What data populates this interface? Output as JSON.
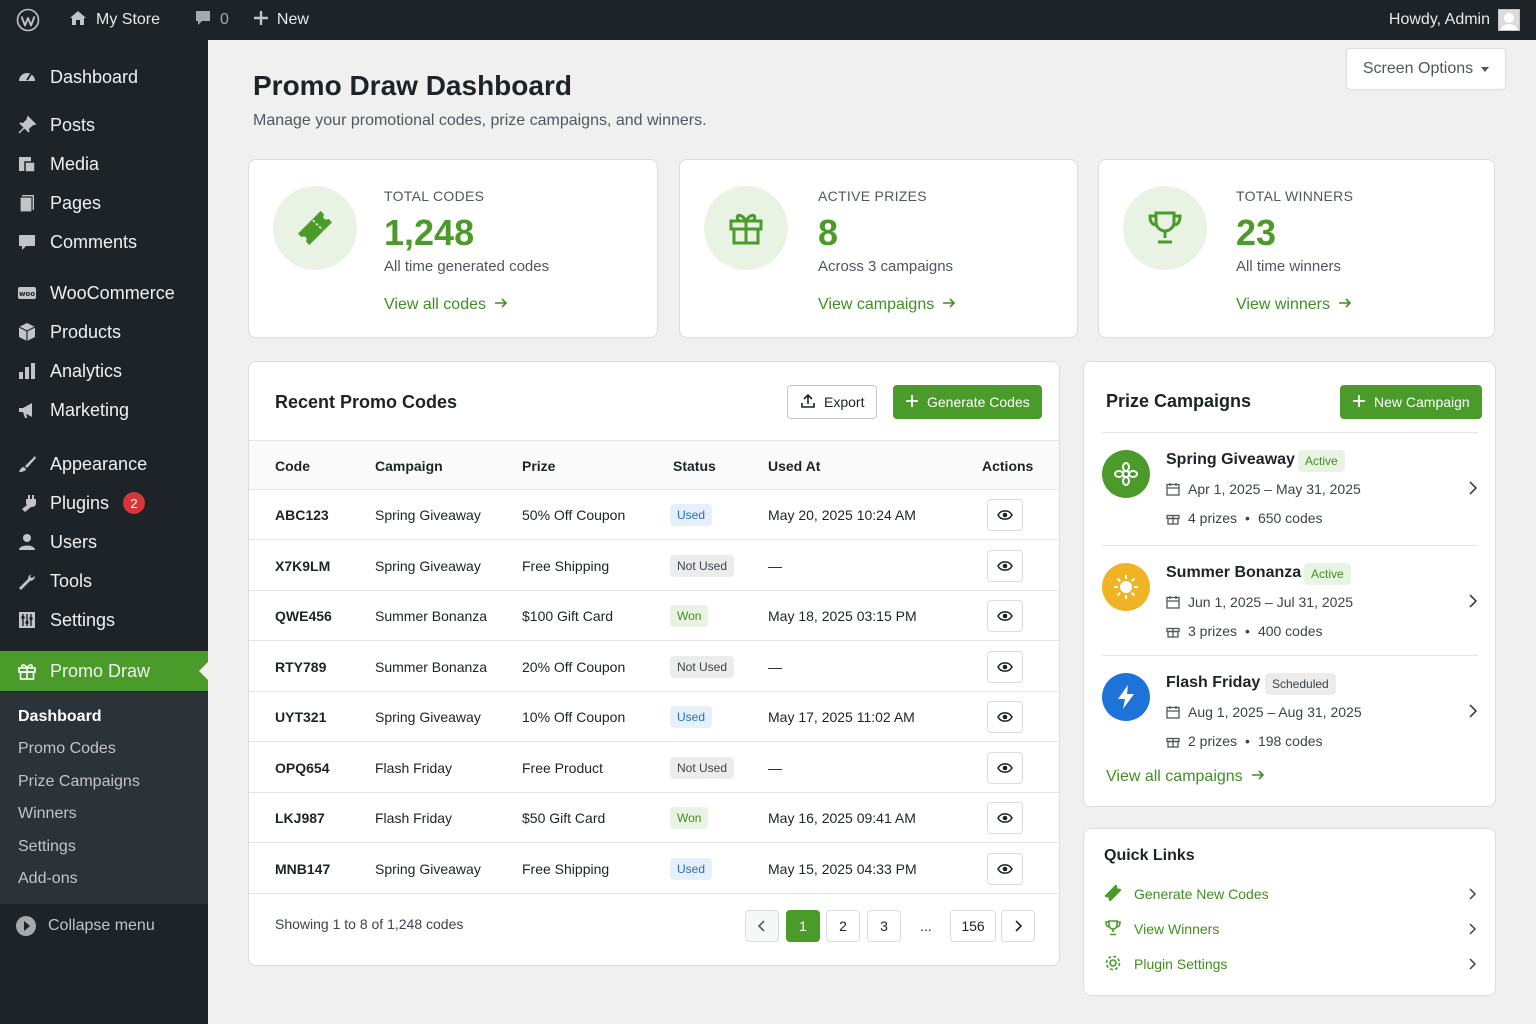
{
  "adminbar": {
    "site_name": "My Store",
    "comments_count": "0",
    "new_label": "New",
    "howdy": "Howdy, Admin"
  },
  "sidebar": {
    "items": [
      {
        "label": "Dashboard",
        "icon": "dashboard-icon"
      },
      {
        "label": "Posts",
        "icon": "pin-icon"
      },
      {
        "label": "Media",
        "icon": "media-icon"
      },
      {
        "label": "Pages",
        "icon": "pages-icon"
      },
      {
        "label": "Comments",
        "icon": "comment-icon"
      },
      {
        "label": "WooCommerce",
        "icon": "woo-icon"
      },
      {
        "label": "Products",
        "icon": "box-icon"
      },
      {
        "label": "Analytics",
        "icon": "bar-chart-icon"
      },
      {
        "label": "Marketing",
        "icon": "megaphone-icon"
      },
      {
        "label": "Appearance",
        "icon": "brush-icon"
      },
      {
        "label": "Plugins",
        "icon": "plug-icon",
        "badge": "2"
      },
      {
        "label": "Users",
        "icon": "user-icon"
      },
      {
        "label": "Tools",
        "icon": "wrench-icon"
      },
      {
        "label": "Settings",
        "icon": "sliders-icon"
      },
      {
        "label": "Promo Draw",
        "icon": "gift-icon",
        "active": true
      }
    ],
    "submenu": [
      "Dashboard",
      "Promo Codes",
      "Prize Campaigns",
      "Winners",
      "Settings",
      "Add-ons"
    ],
    "collapse_label": "Collapse menu"
  },
  "header": {
    "screen_options": "Screen Options",
    "title": "Promo Draw Dashboard",
    "subtitle": "Manage your promotional codes, prize campaigns, and winners."
  },
  "stats": [
    {
      "label": "TOTAL CODES",
      "value": "1,248",
      "desc": "All time generated codes",
      "link": "View all codes",
      "icon": "ticket-icon"
    },
    {
      "label": "ACTIVE PRIZES",
      "value": "8",
      "desc": "Across 3 campaigns",
      "link": "View campaigns",
      "icon": "gift-icon"
    },
    {
      "label": "TOTAL WINNERS",
      "value": "23",
      "desc": "All time winners",
      "link": "View winners",
      "icon": "trophy-icon"
    }
  ],
  "codes_table": {
    "title": "Recent Promo Codes",
    "export_label": "Export",
    "generate_label": "Generate Codes",
    "columns": [
      "Code",
      "Campaign",
      "Prize",
      "Status",
      "Used At",
      "Actions"
    ],
    "rows": [
      {
        "code": "ABC123",
        "campaign": "Spring Giveaway",
        "prize": "50% Off Coupon",
        "status": "Used",
        "status_type": "used",
        "used_at": "May 20, 2025 10:24 AM"
      },
      {
        "code": "X7K9LM",
        "campaign": "Spring Giveaway",
        "prize": "Free Shipping",
        "status": "Not Used",
        "status_type": "notused",
        "used_at": "—"
      },
      {
        "code": "QWE456",
        "campaign": "Summer Bonanza",
        "prize": "$100 Gift Card",
        "status": "Won",
        "status_type": "won",
        "used_at": "May 18, 2025 03:15 PM"
      },
      {
        "code": "RTY789",
        "campaign": "Summer Bonanza",
        "prize": "20% Off Coupon",
        "status": "Not Used",
        "status_type": "notused",
        "used_at": "—"
      },
      {
        "code": "UYT321",
        "campaign": "Spring Giveaway",
        "prize": "10% Off Coupon",
        "status": "Used",
        "status_type": "used",
        "used_at": "May 17, 2025 11:02 AM"
      },
      {
        "code": "OPQ654",
        "campaign": "Flash Friday",
        "prize": "Free Product",
        "status": "Not Used",
        "status_type": "notused",
        "used_at": "—"
      },
      {
        "code": "LKJ987",
        "campaign": "Flash Friday",
        "prize": "$50 Gift Card",
        "status": "Won",
        "status_type": "won",
        "used_at": "May 16, 2025 09:41 AM"
      },
      {
        "code": "MNB147",
        "campaign": "Spring Giveaway",
        "prize": "Free Shipping",
        "status": "Used",
        "status_type": "used",
        "used_at": "May 15, 2025 04:33 PM"
      }
    ],
    "showing": "Showing 1 to 8 of 1,248 codes",
    "pagination": [
      "1",
      "2",
      "3",
      "...",
      "156"
    ]
  },
  "campaigns": {
    "title": "Prize Campaigns",
    "new_label": "New Campaign",
    "items": [
      {
        "name": "Spring Giveaway",
        "status": "Active",
        "dates": "Apr 1, 2025 – May 31, 2025",
        "prizes": "4 prizes",
        "codes": "650 codes",
        "color": "#4a9b2a",
        "icon": "flower-icon"
      },
      {
        "name": "Summer Bonanza",
        "status": "Active",
        "dates": "Jun 1, 2025 – Jul 31, 2025",
        "prizes": "3 prizes",
        "codes": "400 codes",
        "color": "#f0b323",
        "icon": "sun-icon"
      },
      {
        "name": "Flash Friday",
        "status": "Scheduled",
        "dates": "Aug 1, 2025 – Aug 31, 2025",
        "prizes": "2 prizes",
        "codes": "198 codes",
        "color": "#1e73d8",
        "icon": "lightning-icon"
      }
    ],
    "view_all": "View all campaigns"
  },
  "quick_links": {
    "title": "Quick Links",
    "items": [
      "Generate New Codes",
      "View Winners",
      "Plugin Settings"
    ]
  },
  "colors": {
    "accent": "#4a9b2a",
    "sidebar": "#1d2327",
    "badge_red": "#d63638"
  }
}
